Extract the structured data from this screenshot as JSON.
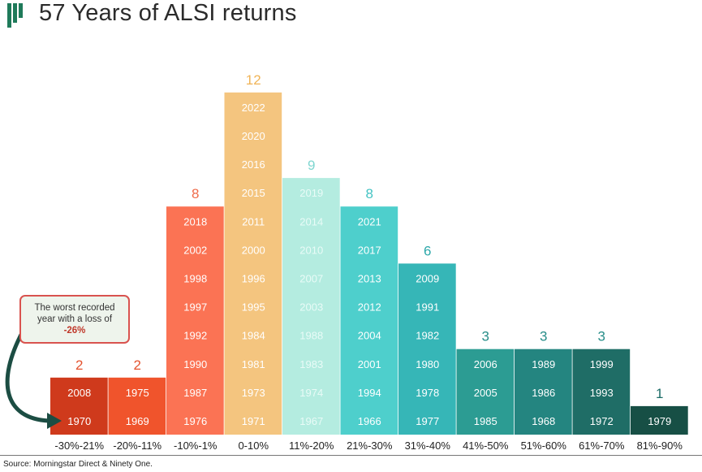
{
  "header": {
    "logo": "bars-logo-icon",
    "title": "57 Years of ALSI returns"
  },
  "callout": {
    "line1": "The worst recorded",
    "line2": "year with a loss of",
    "highlight": "-26%"
  },
  "source": "Source: Morningstar Direct & Ninety One.",
  "chart_data": {
    "type": "bar",
    "title": "57 Years of ALSI returns",
    "xlabel": "",
    "ylabel": "",
    "ylim": [
      0,
      12
    ],
    "grid": false,
    "legend": "none",
    "categories": [
      "-30%-21%",
      "-20%-11%",
      "-10%-1%",
      "0-10%",
      "11%-20%",
      "21%-30%",
      "31%-40%",
      "41%-50%",
      "51%-60%",
      "61%-70%",
      "81%-90%"
    ],
    "values": [
      2,
      2,
      8,
      12,
      9,
      8,
      6,
      3,
      3,
      3,
      1
    ],
    "colors": [
      "#cf3a1c",
      "#f0542c",
      "#fb7354",
      "#f4c57f",
      "#b4ece0",
      "#4ecfcc",
      "#36b6b7",
      "#2c9c93",
      "#248580",
      "#1f6d66",
      "#174f45"
    ],
    "value_label_colors": [
      "#e4532f",
      "#e4532f",
      "#ef6b4a",
      "#f0b457",
      "#7fd6d0",
      "#44c3c3",
      "#2ea8aa",
      "#268d88",
      "#268d88",
      "#268d88",
      "#1a6b66"
    ],
    "years": [
      [
        "1970",
        "2008"
      ],
      [
        "1969",
        "1975"
      ],
      [
        "1976",
        "1987",
        "1990",
        "1992",
        "1997",
        "1998",
        "2002",
        "2018"
      ],
      [
        "1971",
        "1973",
        "1981",
        "1984",
        "1995",
        "1996",
        "2000",
        "2011",
        "2015",
        "2016",
        "2020",
        "2022"
      ],
      [
        "1967",
        "1974",
        "1983",
        "1988",
        "2003",
        "2007",
        "2010",
        "2014",
        "2019"
      ],
      [
        "1966",
        "1994",
        "2001",
        "2004",
        "2012",
        "2013",
        "2017",
        "2021"
      ],
      [
        "1977",
        "1978",
        "1980",
        "1982",
        "1991",
        "2009"
      ],
      [
        "1985",
        "2005",
        "2006"
      ],
      [
        "1968",
        "1986",
        "1989"
      ],
      [
        "1972",
        "1993",
        "1999"
      ],
      [
        "1979"
      ]
    ]
  }
}
